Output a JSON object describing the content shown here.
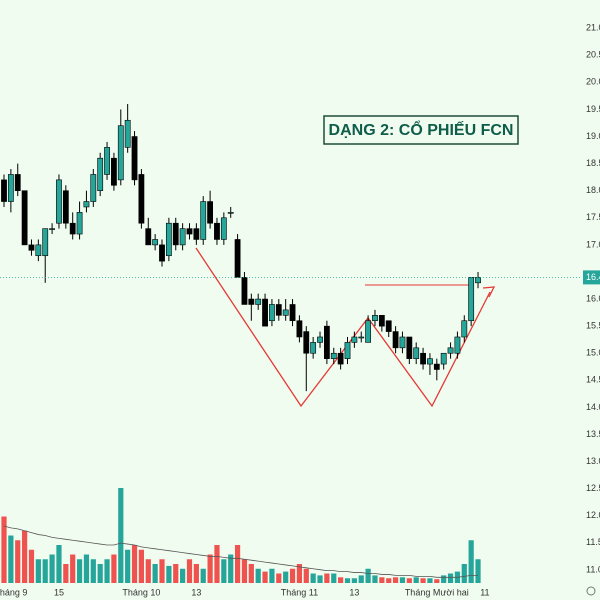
{
  "chart_data": {
    "type": "candlestick",
    "annotation": "DẠNG 2: CỔ PHIẾU FCN",
    "categories": [
      null,
      "Tháng 9",
      null,
      null,
      null,
      null,
      null,
      null,
      "15",
      null,
      null,
      null,
      null,
      null,
      null,
      null,
      null,
      null,
      null,
      null,
      "Tháng 10",
      null,
      null,
      null,
      null,
      null,
      null,
      null,
      "13",
      null,
      null,
      null,
      null,
      null,
      null,
      null,
      null,
      null,
      null,
      null,
      null,
      null,
      null,
      "Tháng 11",
      null,
      null,
      null,
      null,
      null,
      null,
      null,
      "13",
      null,
      null,
      null,
      null,
      null,
      null,
      null,
      null,
      null,
      null,
      null,
      "Tháng Mười hai",
      null,
      null,
      null,
      null,
      null,
      null
    ],
    "next_label": "11",
    "open": [
      18.2,
      17.8,
      18.3,
      18.0,
      17.0,
      16.8,
      16.8,
      17.3,
      17.4,
      18.0,
      17.4,
      17.2,
      17.7,
      17.8,
      18.0,
      18.3,
      18.6,
      18.2,
      18.8,
      19.0,
      18.3,
      17.3,
      17.0,
      17.0,
      16.8,
      17.4,
      17.0,
      17.3,
      17.3,
      17.1,
      17.8,
      17.4,
      17.1,
      17.6,
      17.1,
      16.4,
      16.0,
      15.9,
      16.0,
      15.6,
      15.9,
      15.7,
      15.9,
      15.6,
      15.4,
      15.0,
      15.2,
      15.5,
      14.9,
      15.0,
      14.9,
      15.2,
      15.3,
      15.2,
      15.6,
      15.7,
      15.6,
      15.4,
      15.1,
      15.3,
      14.9,
      15.0,
      14.8,
      14.8,
      14.8,
      15.0,
      15.0,
      15.3,
      15.6,
      16.3
    ],
    "high": [
      18.3,
      18.4,
      18.5,
      18.0,
      17.1,
      17.1,
      17.3,
      17.4,
      18.3,
      18.1,
      17.6,
      17.8,
      18.0,
      18.4,
      18.7,
      18.9,
      18.7,
      19.5,
      19.6,
      19.1,
      18.4,
      17.5,
      17.2,
      17.1,
      17.5,
      17.5,
      17.4,
      17.4,
      17.4,
      17.9,
      18.0,
      17.5,
      17.6,
      17.7,
      17.2,
      16.5,
      16.1,
      16.1,
      16.1,
      16.0,
      16.0,
      16.0,
      16.0,
      15.7,
      15.5,
      15.3,
      15.4,
      15.6,
      15.1,
      15.1,
      15.3,
      15.4,
      15.4,
      15.7,
      15.8,
      15.7,
      15.6,
      15.5,
      15.4,
      15.3,
      15.2,
      15.1,
      15.0,
      14.9,
      15.0,
      15.2,
      15.4,
      15.7,
      16.4,
      16.5
    ],
    "low": [
      17.7,
      17.6,
      17.9,
      17.0,
      16.8,
      16.7,
      16.3,
      17.2,
      17.3,
      17.3,
      17.1,
      17.1,
      17.6,
      17.7,
      17.9,
      18.2,
      18.0,
      18.1,
      18.7,
      18.1,
      17.3,
      17.0,
      16.9,
      16.6,
      16.7,
      16.9,
      16.9,
      17.1,
      17.0,
      17.0,
      17.3,
      17.0,
      17.0,
      17.5,
      16.4,
      15.9,
      15.6,
      15.8,
      15.5,
      15.5,
      15.6,
      15.6,
      15.5,
      15.2,
      14.3,
      14.9,
      15.1,
      14.8,
      14.8,
      14.7,
      14.8,
      15.1,
      15.2,
      15.2,
      15.5,
      15.4,
      15.3,
      15.0,
      15.0,
      14.8,
      14.8,
      14.7,
      14.6,
      14.5,
      14.7,
      14.9,
      14.9,
      15.2,
      15.5,
      16.2
    ],
    "close": [
      17.8,
      18.3,
      18.0,
      17.0,
      16.9,
      17.0,
      17.3,
      17.3,
      18.2,
      17.4,
      17.2,
      17.6,
      17.8,
      18.3,
      18.6,
      18.8,
      18.1,
      19.2,
      19.3,
      18.2,
      17.4,
      17.0,
      17.1,
      16.7,
      17.4,
      17.0,
      17.3,
      17.2,
      17.1,
      17.8,
      17.4,
      17.1,
      17.5,
      17.6,
      16.4,
      15.9,
      15.9,
      16.0,
      15.5,
      15.9,
      15.7,
      15.8,
      15.6,
      15.3,
      15.0,
      15.2,
      15.3,
      14.9,
      15.0,
      14.8,
      15.2,
      15.3,
      15.3,
      15.6,
      15.7,
      15.5,
      15.4,
      15.1,
      15.3,
      14.9,
      15.1,
      14.8,
      14.9,
      14.7,
      15.0,
      15.1,
      15.3,
      15.6,
      16.4,
      16.4
    ],
    "volume": [
      70,
      50,
      45,
      55,
      35,
      25,
      25,
      30,
      40,
      20,
      30,
      25,
      30,
      25,
      20,
      25,
      30,
      100,
      35,
      40,
      35,
      25,
      20,
      25,
      18,
      20,
      15,
      25,
      20,
      15,
      30,
      40,
      25,
      30,
      40,
      25,
      20,
      15,
      12,
      15,
      10,
      12,
      15,
      20,
      15,
      10,
      8,
      10,
      10,
      6,
      5,
      5,
      8,
      15,
      8,
      6,
      5,
      6,
      6,
      5,
      6,
      5,
      5,
      4,
      8,
      10,
      12,
      20,
      45,
      25
    ],
    "volume_ma": [
      60,
      58,
      57,
      55,
      53,
      51,
      50,
      48,
      47,
      46,
      45,
      44,
      43,
      42,
      41,
      40,
      40,
      42,
      41,
      40,
      38,
      37,
      36,
      35,
      34,
      33,
      32,
      31,
      30,
      29,
      28,
      28,
      27,
      26,
      26,
      25,
      24,
      23,
      22,
      21,
      20,
      19,
      18,
      17,
      16,
      15,
      14,
      13,
      13,
      12,
      12,
      11,
      11,
      10,
      10,
      9,
      9,
      8,
      8,
      8,
      7,
      7,
      7,
      6,
      6,
      6,
      6,
      7,
      8,
      8
    ],
    "up_color": "#26a69a",
    "down_color": "#000000",
    "volume_up_color": "#26a69a",
    "volume_down_color": "#ef5350",
    "ma_color": "#555555",
    "current_price": 16.4,
    "ylim": [
      10.63,
      21.52
    ],
    "yticks": [
      {
        "value": 21,
        "label": "21.0"
      },
      {
        "value": 20.5,
        "label": "20.5"
      },
      {
        "value": 20,
        "label": "20.0"
      },
      {
        "value": 19.5,
        "label": "19.5"
      },
      {
        "value": 19,
        "label": "19.0"
      },
      {
        "value": 18.5,
        "label": "18.5"
      },
      {
        "value": 18,
        "label": "18.0"
      },
      {
        "value": 17.5,
        "label": "17.5"
      },
      {
        "value": 17,
        "label": "17.0"
      },
      {
        "value": 16,
        "label": "16.0"
      },
      {
        "value": 15.5,
        "label": "15.5"
      },
      {
        "value": 15,
        "label": "15.0"
      },
      {
        "value": 14.5,
        "label": "14.5"
      },
      {
        "value": 14,
        "label": "14.0"
      },
      {
        "value": 13.5,
        "label": "13.5"
      },
      {
        "value": 13,
        "label": "13.0"
      },
      {
        "value": 12.5,
        "label": "12.5"
      },
      {
        "value": 12,
        "label": "12.0"
      },
      {
        "value": 11.5,
        "label": "11.5"
      },
      {
        "value": 11,
        "label": "11.0"
      }
    ],
    "vlim": [
      0,
      100
    ],
    "grid": false
  }
}
